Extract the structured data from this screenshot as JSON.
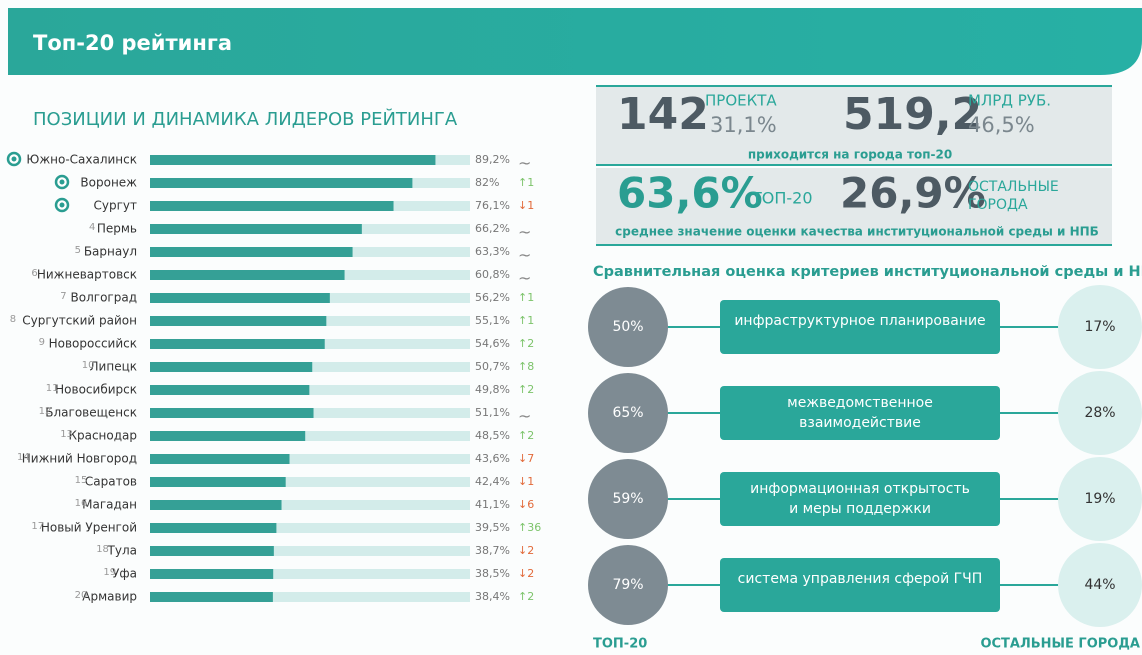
{
  "header": {
    "title": "Топ-20 рейтинга"
  },
  "chart_data": {
    "type": "bar",
    "title": "ПОЗИЦИИ И ДИНАМИКА ЛИДЕРОВ РЕЙТИНГА",
    "orientation": "horizontal",
    "color": "#35a096",
    "track_color": "#d3ecea",
    "categories": [
      "Южно-Сахалинск",
      "Воронеж",
      "Сургут",
      "Пермь",
      "Барнаул",
      "Нижневартовск",
      "Волгоград",
      "Сургутский район",
      "Новороссийск",
      "Липецк",
      "Новосибирск",
      "Благовещенск",
      "Краснодар",
      "Нижний Новгород",
      "Саратов",
      "Магадан",
      "Новый Уренгой",
      "Тула",
      "Уфа",
      "Армавир"
    ],
    "ranks": [
      null,
      null,
      null,
      4,
      5,
      6,
      7,
      8,
      9,
      10,
      11,
      12,
      13,
      14,
      15,
      16,
      17,
      18,
      19,
      20
    ],
    "values": [
      89.2,
      82,
      76.1,
      66.2,
      63.3,
      60.8,
      56.2,
      55.1,
      54.6,
      50.7,
      49.8,
      51.1,
      48.5,
      43.6,
      42.4,
      41.1,
      39.5,
      38.7,
      38.5,
      38.4
    ],
    "value_labels": [
      "89,2%",
      "82%",
      "76,1%",
      "66,2%",
      "63,3%",
      "60,8%",
      "56,2%",
      "55,1%",
      "54,6%",
      "50,7%",
      "49,8%",
      "51,1%",
      "48,5%",
      "43,6%",
      "42,4%",
      "41,1%",
      "39,5%",
      "38,7%",
      "38,5%",
      "38,4%"
    ],
    "trends": [
      "~",
      "↑1",
      "↓1",
      "~",
      "~",
      "~",
      "↑1",
      "↑1",
      "↑2",
      "↑8",
      "↑2",
      "~",
      "↑2",
      "↓7",
      "↓1",
      "↓6",
      "↑36",
      "↓2",
      "↓2",
      "↑2"
    ],
    "xlim": [
      0,
      100
    ]
  },
  "stats": {
    "projects": "142",
    "projects_label": "ПРОЕКТА",
    "projects_share": "31,1%",
    "money": "519,2",
    "money_label": "МЛРД РУБ.",
    "money_share": "46,5%",
    "caption1": "приходится на города топ-20",
    "top20_score": "63,6%",
    "top20_label": "ТОП-20",
    "other_score": "26,9%",
    "other_label_1": "ОСТАЛЬНЫЕ",
    "other_label_2": "ГОРОДА",
    "caption2": "среднее значение оценки качества институциональной среды и НПБ"
  },
  "comparison": {
    "title": "Сравнительная оценка критериев институциональной среды и НПБ",
    "criteria": [
      {
        "lines": [
          "инфраструктурное планирование"
        ],
        "top20": "50%",
        "other": "17%"
      },
      {
        "lines": [
          "межведомственное",
          "взаимодействие"
        ],
        "top20": "65%",
        "other": "28%"
      },
      {
        "lines": [
          "информационная открытость",
          "и меры поддержки"
        ],
        "top20": "59%",
        "other": "19%"
      },
      {
        "lines": [
          "система управления сферой ГЧП"
        ],
        "top20": "79%",
        "other": "44%"
      }
    ],
    "left_label": "ТОП-20",
    "right_label": "ОСТАЛЬНЫЕ ГОРОДА"
  }
}
